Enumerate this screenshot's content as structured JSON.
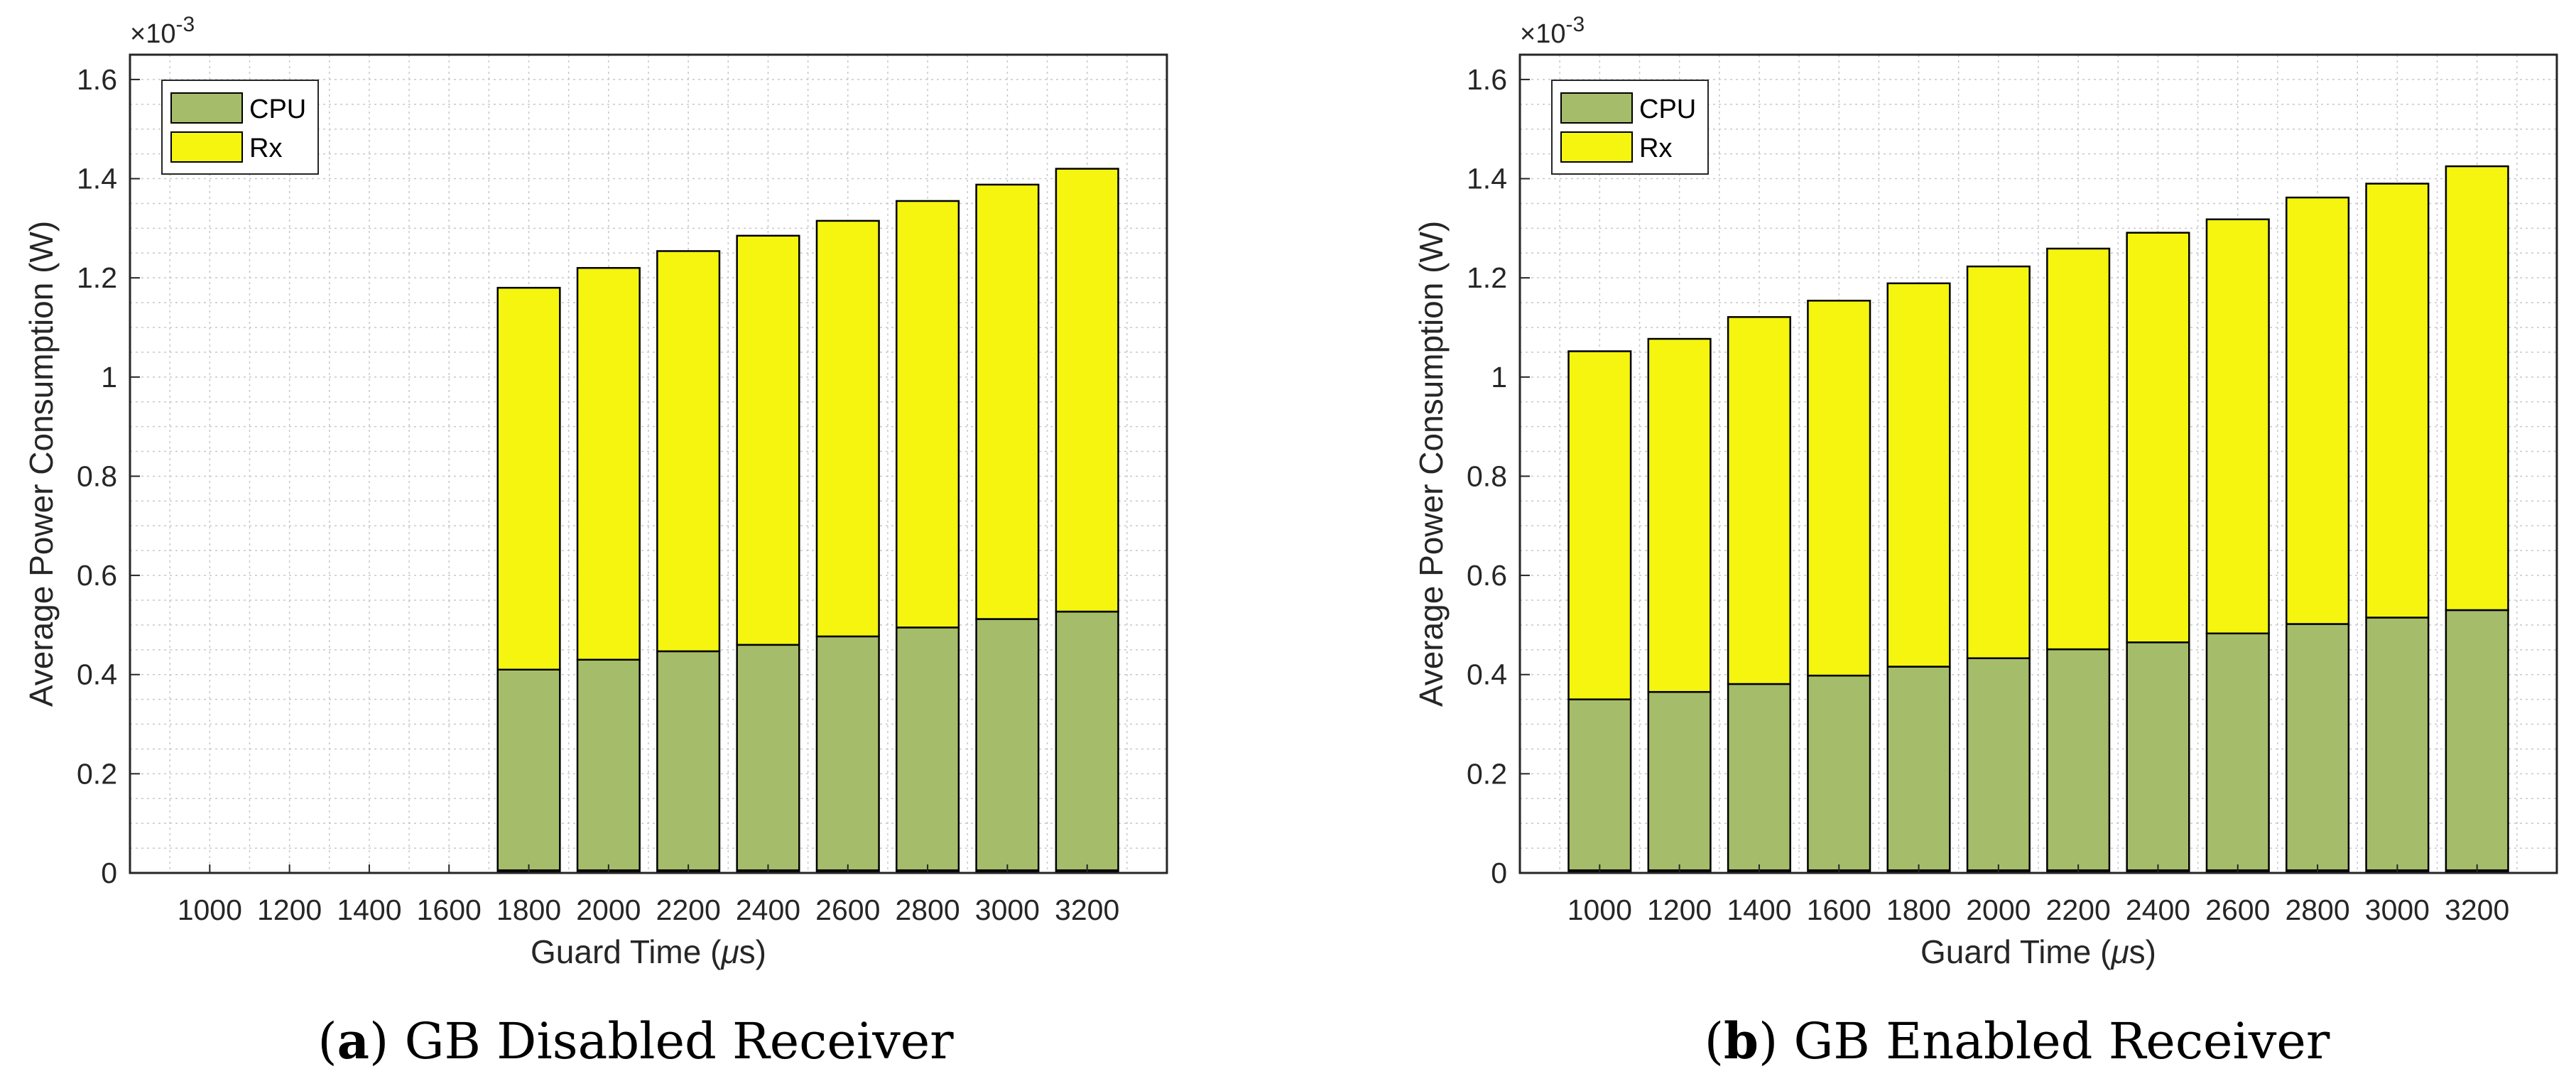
{
  "colors": {
    "cpu": "#a5bd6a",
    "rx": "#f5f50f",
    "axis": "#262626",
    "grid": "#c8c8c8"
  },
  "chart_data": [
    {
      "type": "bar",
      "stacked": true,
      "caption_letter": "a",
      "caption_text": ") GB Disabled Receiver",
      "caption_open": "(",
      "categories": [
        "1000",
        "1200",
        "1400",
        "1600",
        "1800",
        "2000",
        "2200",
        "2400",
        "2600",
        "2800",
        "3000",
        "3200"
      ],
      "series": [
        {
          "name": "CPU",
          "values": [
            0,
            0,
            0,
            0,
            0.41,
            0.43,
            0.447,
            0.46,
            0.477,
            0.495,
            0.512,
            0.527
          ]
        },
        {
          "name": "Rx",
          "values": [
            0,
            0,
            0,
            0,
            0.77,
            0.79,
            0.807,
            0.825,
            0.838,
            0.86,
            0.876,
            0.893
          ]
        }
      ],
      "xlabel_prefix": "Guard Time (",
      "xlabel_mu": "μ",
      "xlabel_suffix": "s)",
      "ylabel": "Average Power Consumption (W)",
      "exponent_prefix": "×10",
      "exponent_power": "-3",
      "ylim": [
        0,
        1.65
      ],
      "yticks": [
        0,
        0.2,
        0.4,
        0.6,
        0.8,
        1,
        1.2,
        1.4,
        1.6
      ],
      "ytick_labels": [
        "0",
        "0.2",
        "0.4",
        "0.6",
        "0.8",
        "1",
        "1.2",
        "1.4",
        "1.6"
      ],
      "grid": true,
      "legend_position": "top-left"
    },
    {
      "type": "bar",
      "stacked": true,
      "caption_letter": "b",
      "caption_text": ") GB Enabled Receiver",
      "caption_open": "(",
      "categories": [
        "1000",
        "1200",
        "1400",
        "1600",
        "1800",
        "2000",
        "2200",
        "2400",
        "2600",
        "2800",
        "3000",
        "3200"
      ],
      "series": [
        {
          "name": "CPU",
          "values": [
            0.35,
            0.365,
            0.381,
            0.398,
            0.416,
            0.433,
            0.451,
            0.465,
            0.483,
            0.502,
            0.515,
            0.53
          ]
        },
        {
          "name": "Rx",
          "values": [
            0.702,
            0.712,
            0.74,
            0.756,
            0.773,
            0.79,
            0.808,
            0.826,
            0.835,
            0.86,
            0.875,
            0.895
          ]
        }
      ],
      "xlabel_prefix": "Guard Time (",
      "xlabel_mu": "μ",
      "xlabel_suffix": "s)",
      "ylabel": "Average Power Consumption (W)",
      "exponent_prefix": "×10",
      "exponent_power": "-3",
      "ylim": [
        0,
        1.65
      ],
      "yticks": [
        0,
        0.2,
        0.4,
        0.6,
        0.8,
        1,
        1.2,
        1.4,
        1.6
      ],
      "ytick_labels": [
        "0",
        "0.2",
        "0.4",
        "0.6",
        "0.8",
        "1",
        "1.2",
        "1.4",
        "1.6"
      ],
      "grid": true,
      "legend_position": "top-left"
    }
  ]
}
